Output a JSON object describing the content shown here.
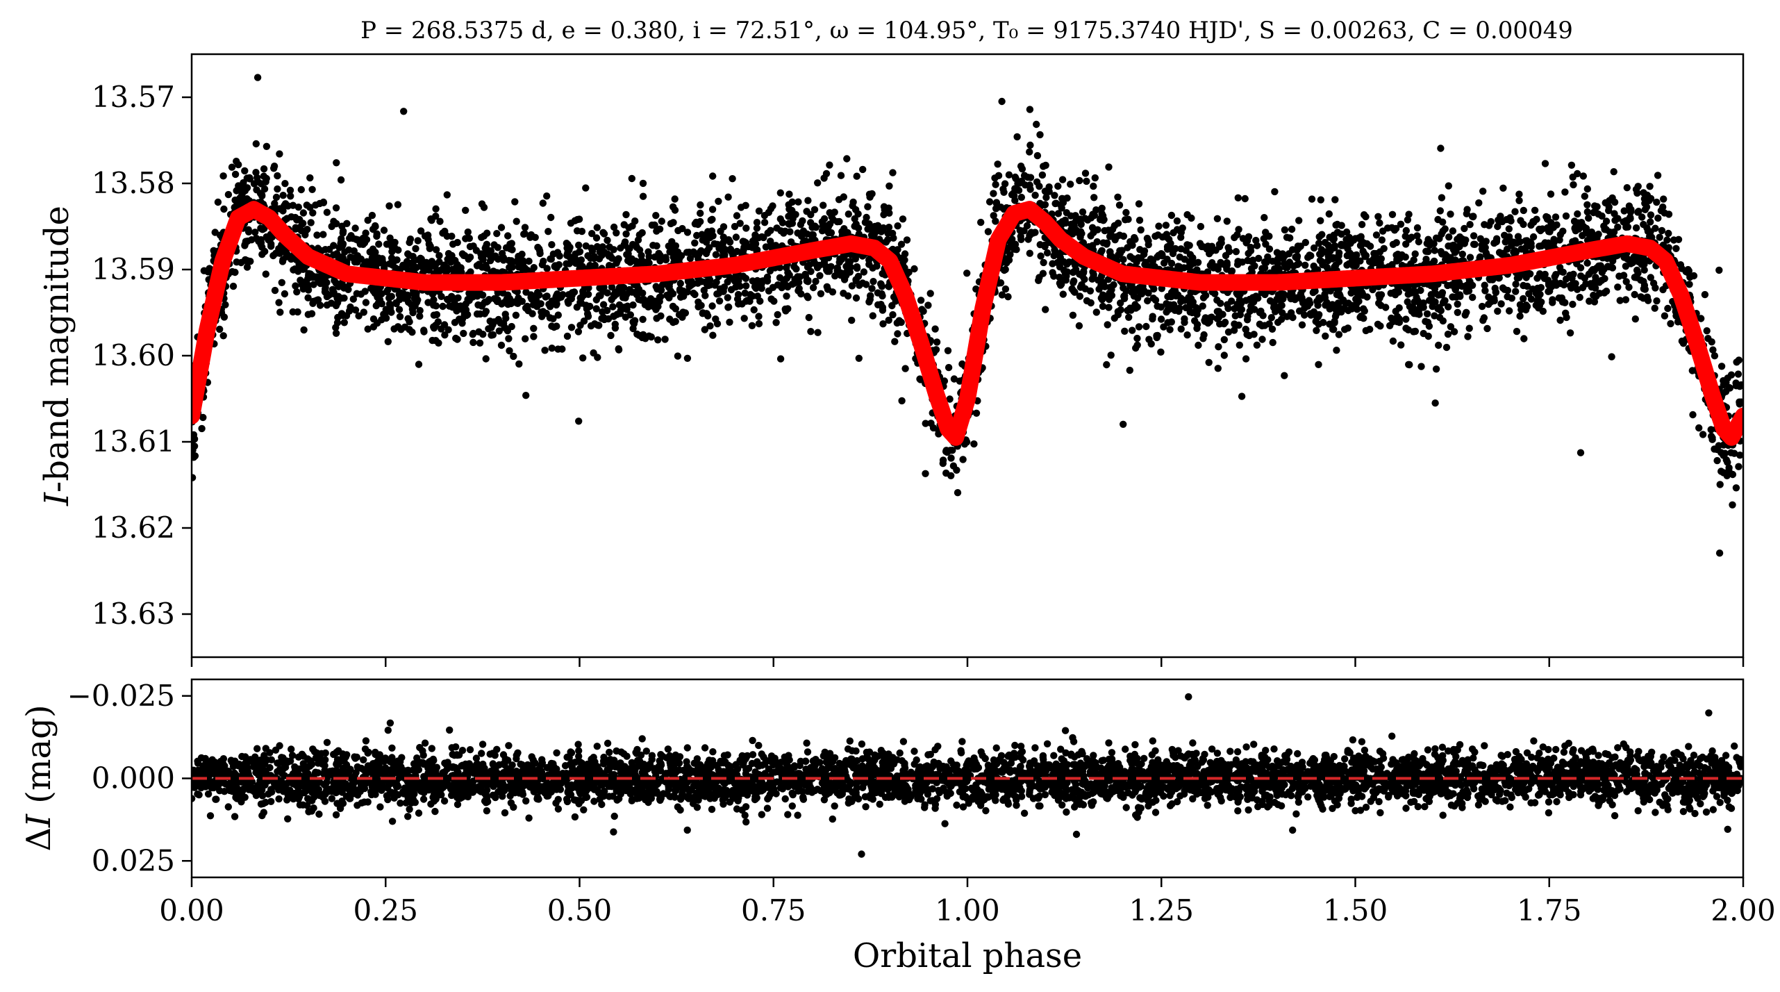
{
  "chart_data": [
    {
      "type": "scatter",
      "panel": "light-curve",
      "title": "P = 268.5375 d, e = 0.380, i = 72.51°, ω = 104.95°, T₀ = 9175.3740 HJD', S = 0.00263, C = 0.00049",
      "ylabel_italic": "I",
      "ylabel_rest": "-band magnitude",
      "xlabel": "Orbital phase",
      "xlim": [
        0.0,
        2.0
      ],
      "ylim": [
        13.565,
        13.635
      ],
      "y_inverted": true,
      "y_ticks": [
        "13.57",
        "13.58",
        "13.59",
        "13.60",
        "13.61",
        "13.62",
        "13.63"
      ],
      "y_tick_values": [
        13.57,
        13.58,
        13.59,
        13.6,
        13.61,
        13.62,
        13.63
      ],
      "x_ticks": [
        "0.00",
        "0.25",
        "0.50",
        "0.75",
        "1.00",
        "1.25",
        "1.50",
        "1.75",
        "2.00"
      ],
      "x_tick_values": [
        0.0,
        0.25,
        0.5,
        0.75,
        1.0,
        1.25,
        1.5,
        1.75,
        2.0
      ],
      "grid": false,
      "series": [
        {
          "kind": "observations",
          "marker": "circle",
          "color": "#000000",
          "approx_points": 4800,
          "scatter_sigma_mag": 0.0035
        },
        {
          "kind": "model",
          "color": "#ff0000",
          "x": [
            0.0,
            0.02,
            0.04,
            0.06,
            0.08,
            0.1,
            0.12,
            0.15,
            0.2,
            0.3,
            0.4,
            0.5,
            0.6,
            0.7,
            0.8,
            0.85,
            0.88,
            0.9,
            0.92,
            0.94,
            0.96,
            0.975,
            0.985,
            1.0,
            1.02,
            1.04,
            1.06,
            1.08,
            1.1,
            1.12,
            1.15,
            1.2,
            1.3,
            1.4,
            1.5,
            1.6,
            1.7,
            1.8,
            1.85,
            1.88,
            1.9,
            1.92,
            1.94,
            1.96,
            1.975,
            1.985,
            2.0
          ],
          "y": [
            13.607,
            13.597,
            13.589,
            13.584,
            13.583,
            13.584,
            13.586,
            13.5885,
            13.5905,
            13.5915,
            13.5915,
            13.591,
            13.5905,
            13.5895,
            13.5878,
            13.587,
            13.5875,
            13.589,
            13.593,
            13.5985,
            13.6045,
            13.6085,
            13.6095,
            13.605,
            13.5945,
            13.5865,
            13.5835,
            13.583,
            13.5845,
            13.5865,
            13.5885,
            13.5905,
            13.5915,
            13.5915,
            13.591,
            13.5905,
            13.5895,
            13.5878,
            13.587,
            13.5875,
            13.589,
            13.593,
            13.5985,
            13.6045,
            13.6085,
            13.6095,
            13.607
          ]
        }
      ]
    },
    {
      "type": "scatter",
      "panel": "residuals",
      "ylabel_prefix": "Δ",
      "ylabel_italic": "I",
      "ylabel_rest": " (mag)",
      "xlabel": "Orbital phase",
      "xlim": [
        0.0,
        2.0
      ],
      "ylim": [
        -0.03,
        0.03
      ],
      "y_inverted": true,
      "y_ticks": [
        "−0.025",
        "0.000",
        "0.025"
      ],
      "y_tick_values": [
        -0.025,
        0.0,
        0.025
      ],
      "x_ticks": [
        "0.00",
        "0.25",
        "0.50",
        "0.75",
        "1.00",
        "1.25",
        "1.50",
        "1.75",
        "2.00"
      ],
      "x_tick_values": [
        0.0,
        0.25,
        0.5,
        0.75,
        1.0,
        1.25,
        1.5,
        1.75,
        2.0
      ],
      "grid": false,
      "series": [
        {
          "kind": "residuals",
          "marker": "circle",
          "color": "#000000",
          "approx_points": 4800,
          "scatter_sigma_mag": 0.004
        },
        {
          "kind": "zero-line",
          "style": "dashed",
          "color": "#d62728",
          "y": 0.0
        }
      ]
    }
  ]
}
